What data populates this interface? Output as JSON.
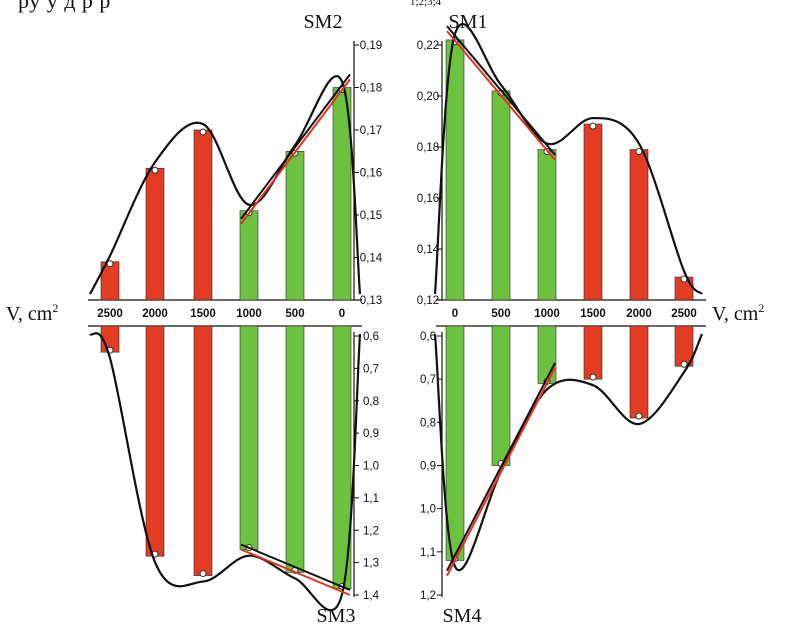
{
  "caption_fragment": "ру                                                                    у       д р   р",
  "caption_subscript": "1;2;3;4",
  "colors": {
    "red": "#e23d22",
    "green": "#6cc13e",
    "black": "#111111",
    "trend_red": "#e5331e"
  },
  "axis_name": {
    "text": "V, cm",
    "sup": "2"
  },
  "chart_data": [
    {
      "id": "SM2",
      "type": "bar",
      "title": "SM2",
      "categories": [
        "2500",
        "2000",
        "1500",
        "1000",
        "500",
        "0"
      ],
      "values": [
        0.139,
        0.161,
        0.17,
        0.151,
        0.165,
        0.18
      ],
      "bar_colors": [
        "red",
        "red",
        "red",
        "green",
        "green",
        "green"
      ],
      "ylim": [
        0.13,
        0.19
      ],
      "yticks": [
        "0,13",
        "0,14",
        "0,15",
        "0,16",
        "0,17",
        "0,18",
        "0,19"
      ]
    },
    {
      "id": "SM1",
      "type": "bar",
      "title": "SM1",
      "categories": [
        "0",
        "500",
        "1000",
        "1500",
        "2000",
        "2500"
      ],
      "values": [
        0.222,
        0.202,
        0.179,
        0.189,
        0.179,
        0.129
      ],
      "bar_colors": [
        "green",
        "green",
        "green",
        "red",
        "red",
        "red"
      ],
      "ylim": [
        0.12,
        0.22
      ],
      "yticks": [
        "0,12",
        "0,14",
        "0,16",
        "0,18",
        "0,20",
        "0,22"
      ]
    },
    {
      "id": "SM3",
      "type": "bar",
      "title": "SM3",
      "categories": [
        "2500",
        "2000",
        "1500",
        "1000",
        "500",
        "0"
      ],
      "values": [
        0.65,
        1.28,
        1.34,
        1.26,
        1.33,
        1.38
      ],
      "bar_colors": [
        "red",
        "red",
        "red",
        "green",
        "green",
        "green"
      ],
      "ylim": [
        0.6,
        1.4
      ],
      "inverted": true,
      "yticks": [
        "0,6",
        "0,7",
        "0,8",
        "0,9",
        "1,0",
        "1,1",
        "1,2",
        "1,3",
        "1,4"
      ]
    },
    {
      "id": "SM4",
      "type": "bar",
      "title": "SM4",
      "categories": [
        "0",
        "500",
        "1000",
        "1500",
        "2000",
        "2500"
      ],
      "values": [
        1.12,
        0.9,
        0.71,
        0.7,
        0.79,
        0.67
      ],
      "bar_colors": [
        "green",
        "green",
        "green",
        "red",
        "red",
        "red"
      ],
      "ylim": [
        0.6,
        1.2
      ],
      "inverted": true,
      "yticks": [
        "0,6",
        "0,7",
        "0,8",
        "0,9",
        "1,0",
        "1,1",
        "1,2"
      ]
    }
  ]
}
